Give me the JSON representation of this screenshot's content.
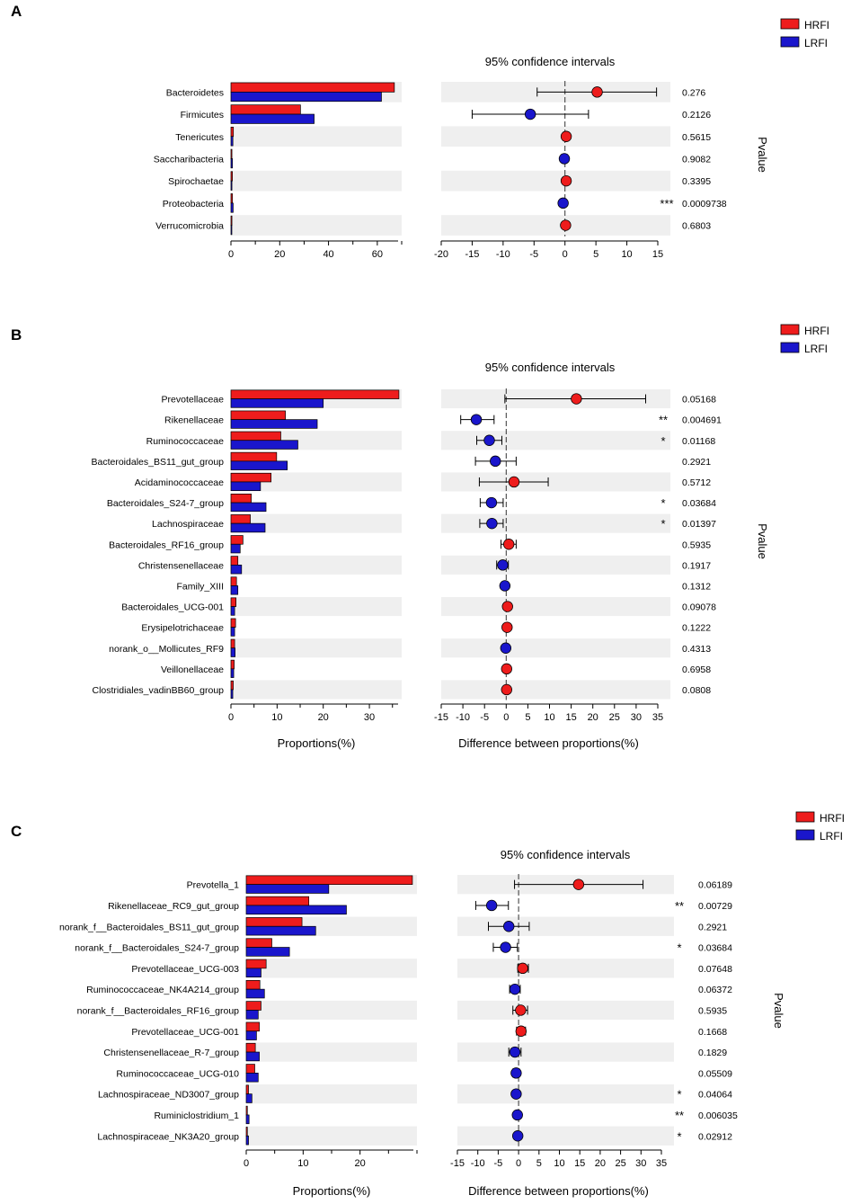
{
  "colors": {
    "hrfi": "#ee1c1c",
    "lrfi": "#1a16cc",
    "band": "#efefef"
  },
  "chart_data": [
    {
      "panel_label": "A",
      "type": "bar",
      "legend": [
        "HRFI",
        "LRFI"
      ],
      "ci_title": "95% confidence intervals",
      "pvalue_label": "Pvalue",
      "xlabel_left": "",
      "xlabel_right": "",
      "bar_ticks": [
        0,
        20,
        40,
        60
      ],
      "bar_xlim": [
        0,
        70
      ],
      "diff_ticks": [
        -20,
        -15,
        -10,
        -5,
        0,
        5,
        10,
        15
      ],
      "diff_xlim": [
        -20,
        15
      ],
      "categories": [
        "Bacteroidetes",
        "Firmicutes",
        "Tenericutes",
        "Saccharibacteria",
        "Spirochaetae",
        "Proteobacteria",
        "Verrucomicrobia"
      ],
      "series": [
        {
          "name": "HRFI",
          "values": [
            67.0,
            28.5,
            1.0,
            0.4,
            0.6,
            0.6,
            0.4
          ]
        },
        {
          "name": "LRFI",
          "values": [
            61.7,
            34.1,
            0.8,
            0.6,
            0.4,
            0.9,
            0.2
          ]
        }
      ],
      "differences": [
        5.2,
        -5.6,
        0.2,
        -0.1,
        0.2,
        -0.3,
        0.1
      ],
      "ci_lower": [
        -4.5,
        -15.0,
        -0.3,
        -0.6,
        -0.2,
        -0.6,
        -0.3
      ],
      "ci_upper": [
        14.8,
        3.8,
        0.6,
        0.4,
        0.5,
        -0.1,
        0.4
      ],
      "pvalues": [
        "0.276",
        "0.2126",
        "0.5615",
        "0.9082",
        "0.3395",
        "0.0009738",
        "0.6803"
      ],
      "significance": [
        "",
        "",
        "",
        "",
        "",
        "***",
        ""
      ]
    },
    {
      "panel_label": "B",
      "type": "bar",
      "legend": [
        "HRFI",
        "LRFI"
      ],
      "ci_title": "95% confidence intervals",
      "pvalue_label": "Pvalue",
      "xlabel_left": "Proportions(%)",
      "xlabel_right": "Difference between proportions(%)",
      "bar_ticks": [
        0,
        10,
        20,
        30
      ],
      "bar_xlim": [
        0,
        37
      ],
      "diff_ticks": [
        -15,
        -10,
        -5,
        0,
        5,
        10,
        15,
        20,
        25,
        30,
        35
      ],
      "diff_xlim": [
        -15,
        35
      ],
      "categories": [
        "Prevotellaceae",
        "Rikenellaceae",
        "Ruminococcaceae",
        "Bacteroidales_BS11_gut_group",
        "Acidaminococcaceae",
        "Bacteroidales_S24-7_group",
        "Lachnospiraceae",
        "Bacteroidales_RF16_group",
        "Christensenellaceae",
        "Family_XIII",
        "Bacteroidales_UCG-001",
        "Erysipelotrichaceae",
        "norank_o__Mollicutes_RF9",
        "Veillonellaceae",
        "Clostridiales_vadinBB60_group"
      ],
      "series": [
        {
          "name": "HRFI",
          "values": [
            36.4,
            11.8,
            10.8,
            9.9,
            8.7,
            4.4,
            4.2,
            2.6,
            1.5,
            1.2,
            1.1,
            1.0,
            0.8,
            0.7,
            0.5
          ]
        },
        {
          "name": "LRFI",
          "values": [
            20.0,
            18.7,
            14.5,
            12.2,
            6.4,
            7.6,
            7.4,
            2.0,
            2.3,
            1.5,
            0.8,
            0.8,
            0.9,
            0.6,
            0.4
          ]
        }
      ],
      "differences": [
        16.2,
        -6.9,
        -3.9,
        -2.5,
        1.8,
        -3.4,
        -3.3,
        0.6,
        -0.8,
        -0.3,
        0.3,
        0.2,
        -0.1,
        0.1,
        0.1
      ],
      "ci_lower": [
        -0.3,
        -10.5,
        -6.8,
        -7.1,
        -6.2,
        -6.0,
        -6.1,
        -1.2,
        -2.2,
        -0.9,
        -0.3,
        -0.2,
        -0.3,
        -0.3,
        -0.2
      ],
      "ci_upper": [
        32.2,
        -2.8,
        -1.0,
        2.3,
        9.7,
        -0.7,
        -0.7,
        2.3,
        0.5,
        0.3,
        0.9,
        0.7,
        0.2,
        0.5,
        0.4
      ],
      "pvalues": [
        "0.05168",
        "0.004691",
        "0.01168",
        "0.2921",
        "0.5712",
        "0.03684",
        "0.01397",
        "0.5935",
        "0.1917",
        "0.1312",
        "0.09078",
        "0.1222",
        "0.4313",
        "0.6958",
        "0.0808"
      ],
      "significance": [
        "",
        "**",
        "*",
        "",
        "",
        "*",
        "*",
        "",
        "",
        "",
        "",
        "",
        "",
        "",
        ""
      ]
    },
    {
      "panel_label": "C",
      "type": "bar",
      "legend": [
        "HRFI",
        "LRFI"
      ],
      "ci_title": "95% confidence intervals",
      "pvalue_label": "Pvalue",
      "xlabel_left": "Proportions(%)",
      "xlabel_right": "Difference between proportions(%)",
      "bar_ticks": [
        0,
        10,
        20
      ],
      "bar_xlim": [
        0,
        30
      ],
      "diff_ticks": [
        -15,
        -10,
        -5,
        0,
        5,
        10,
        15,
        20,
        25,
        30,
        35
      ],
      "diff_xlim": [
        -15,
        35
      ],
      "categories": [
        "Prevotella_1",
        "Rikenellaceae_RC9_gut_group",
        "norank_f__Bacteroidales_BS11_gut_group",
        "norank_f__Bacteroidales_S24-7_group",
        "Prevotellaceae_UCG-003",
        "Ruminococcaceae_NK4A214_group",
        "norank_f__Bacteroidales_RF16_group",
        "Prevotellaceae_UCG-001",
        "Christensenellaceae_R-7_group",
        "Ruminococcaceae_UCG-010",
        "Lachnospiraceae_ND3007_group",
        "Ruminiclostridium_1",
        "Lachnospiraceae_NK3A20_group"
      ],
      "series": [
        {
          "name": "HRFI",
          "values": [
            29.2,
            11.0,
            9.8,
            4.5,
            3.5,
            2.4,
            2.6,
            2.3,
            1.6,
            1.5,
            0.4,
            0.2,
            0.2
          ]
        },
        {
          "name": "LRFI",
          "values": [
            14.5,
            17.6,
            12.2,
            7.6,
            2.6,
            3.2,
            2.1,
            1.8,
            2.3,
            2.1,
            1.0,
            0.5,
            0.4
          ]
        }
      ],
      "differences": [
        14.7,
        -6.6,
        -2.4,
        -3.2,
        1.0,
        -0.9,
        0.5,
        0.6,
        -0.9,
        -0.6,
        -0.6,
        -0.3,
        -0.2
      ],
      "ci_lower": [
        -1.0,
        -10.5,
        -7.4,
        -6.2,
        -0.2,
        -2.2,
        -1.4,
        -0.5,
        -2.4,
        -1.4,
        -1.1,
        -0.6,
        -0.4
      ],
      "ci_upper": [
        30.5,
        -2.5,
        2.6,
        -0.3,
        2.4,
        0.4,
        2.2,
        1.7,
        0.6,
        0.2,
        -0.1,
        -0.1,
        -0.05
      ],
      "pvalues": [
        "0.06189",
        "0.00729",
        "0.2921",
        "0.03684",
        "0.07648",
        "0.06372",
        "0.5935",
        "0.1668",
        "0.1829",
        "0.05509",
        "0.04064",
        "0.006035",
        "0.02912"
      ],
      "significance": [
        "",
        "**",
        "",
        "*",
        "",
        "",
        "",
        "",
        "",
        "",
        "*",
        "**",
        "*"
      ]
    }
  ]
}
